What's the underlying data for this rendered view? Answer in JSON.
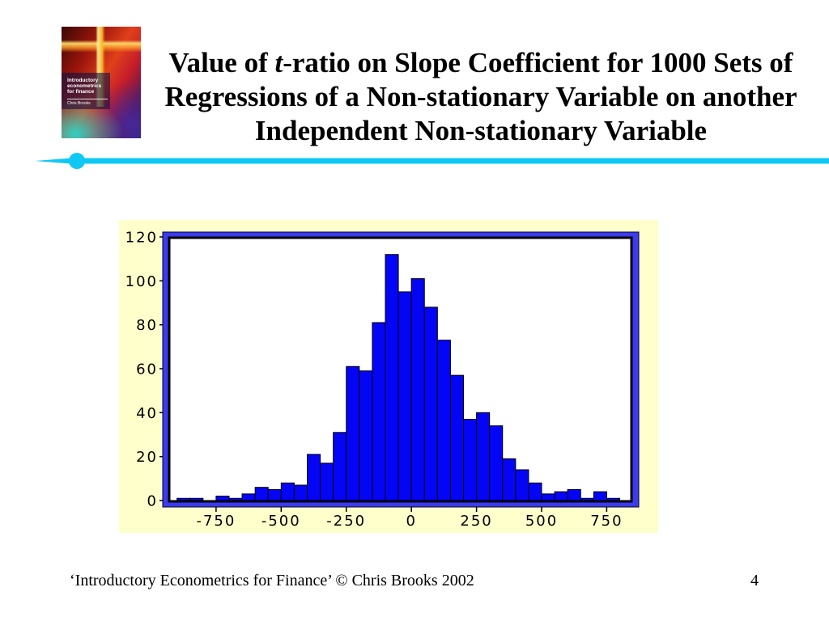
{
  "slide": {
    "title": {
      "line1_before": "Value of ",
      "line1_italic": "t",
      "line1_after": "-ratio on Slope Coefficient for 1000 Sets of",
      "line2": "Regressions of a Non-stationary Variable on another",
      "line3": "Independent Non-stationary Variable"
    },
    "footer": "‘Introductory Econometrics for Finance’ © Chris Brooks 2002",
    "page_number": "4"
  },
  "cover": {
    "title_lines": [
      "Introductory",
      "econometrics",
      "for finance"
    ],
    "author": "Chris Brooks"
  },
  "colors": {
    "accent_line": "#10C8F4",
    "chart_panel": "#FFFFCC",
    "plot_frame": "#3B3BEF",
    "bars": "#0505F5"
  },
  "chart_data": {
    "type": "bar",
    "histogram": true,
    "bins": [
      {
        "from": -900,
        "to": -850,
        "count": 1
      },
      {
        "from": -850,
        "to": -800,
        "count": 1
      },
      {
        "from": -800,
        "to": -750,
        "count": 0
      },
      {
        "from": -750,
        "to": -700,
        "count": 2
      },
      {
        "from": -700,
        "to": -650,
        "count": 1
      },
      {
        "from": -650,
        "to": -600,
        "count": 3
      },
      {
        "from": -600,
        "to": -550,
        "count": 6
      },
      {
        "from": -550,
        "to": -500,
        "count": 5
      },
      {
        "from": -500,
        "to": -450,
        "count": 8
      },
      {
        "from": -450,
        "to": -400,
        "count": 7
      },
      {
        "from": -400,
        "to": -350,
        "count": 21
      },
      {
        "from": -350,
        "to": -300,
        "count": 17
      },
      {
        "from": -300,
        "to": -250,
        "count": 31
      },
      {
        "from": -250,
        "to": -200,
        "count": 61
      },
      {
        "from": -200,
        "to": -150,
        "count": 59
      },
      {
        "from": -150,
        "to": -100,
        "count": 81
      },
      {
        "from": -100,
        "to": -50,
        "count": 112
      },
      {
        "from": -50,
        "to": 0,
        "count": 95
      },
      {
        "from": 0,
        "to": 50,
        "count": 101
      },
      {
        "from": 50,
        "to": 100,
        "count": 88
      },
      {
        "from": 100,
        "to": 150,
        "count": 73
      },
      {
        "from": 150,
        "to": 200,
        "count": 57
      },
      {
        "from": 200,
        "to": 250,
        "count": 37
      },
      {
        "from": 250,
        "to": 300,
        "count": 40
      },
      {
        "from": 300,
        "to": 350,
        "count": 34
      },
      {
        "from": 350,
        "to": 400,
        "count": 19
      },
      {
        "from": 400,
        "to": 450,
        "count": 14
      },
      {
        "from": 450,
        "to": 500,
        "count": 8
      },
      {
        "from": 500,
        "to": 550,
        "count": 3
      },
      {
        "from": 550,
        "to": 600,
        "count": 4
      },
      {
        "from": 600,
        "to": 650,
        "count": 5
      },
      {
        "from": 650,
        "to": 700,
        "count": 1
      },
      {
        "from": 700,
        "to": 750,
        "count": 4
      },
      {
        "from": 750,
        "to": 800,
        "count": 1
      }
    ],
    "xlim": [
      -930,
      845
    ],
    "ylim": [
      0,
      120
    ],
    "x_ticks": [
      -750,
      -500,
      -250,
      0,
      250,
      500,
      750
    ],
    "x_tick_labels": [
      "-750",
      "-500",
      "-250",
      "0",
      "250",
      "500",
      "750"
    ],
    "y_ticks": [
      0,
      20,
      40,
      60,
      80,
      100,
      120
    ],
    "y_tick_labels": [
      "0",
      "20",
      "40",
      "60",
      "80",
      "100",
      "120"
    ],
    "grid": false
  }
}
